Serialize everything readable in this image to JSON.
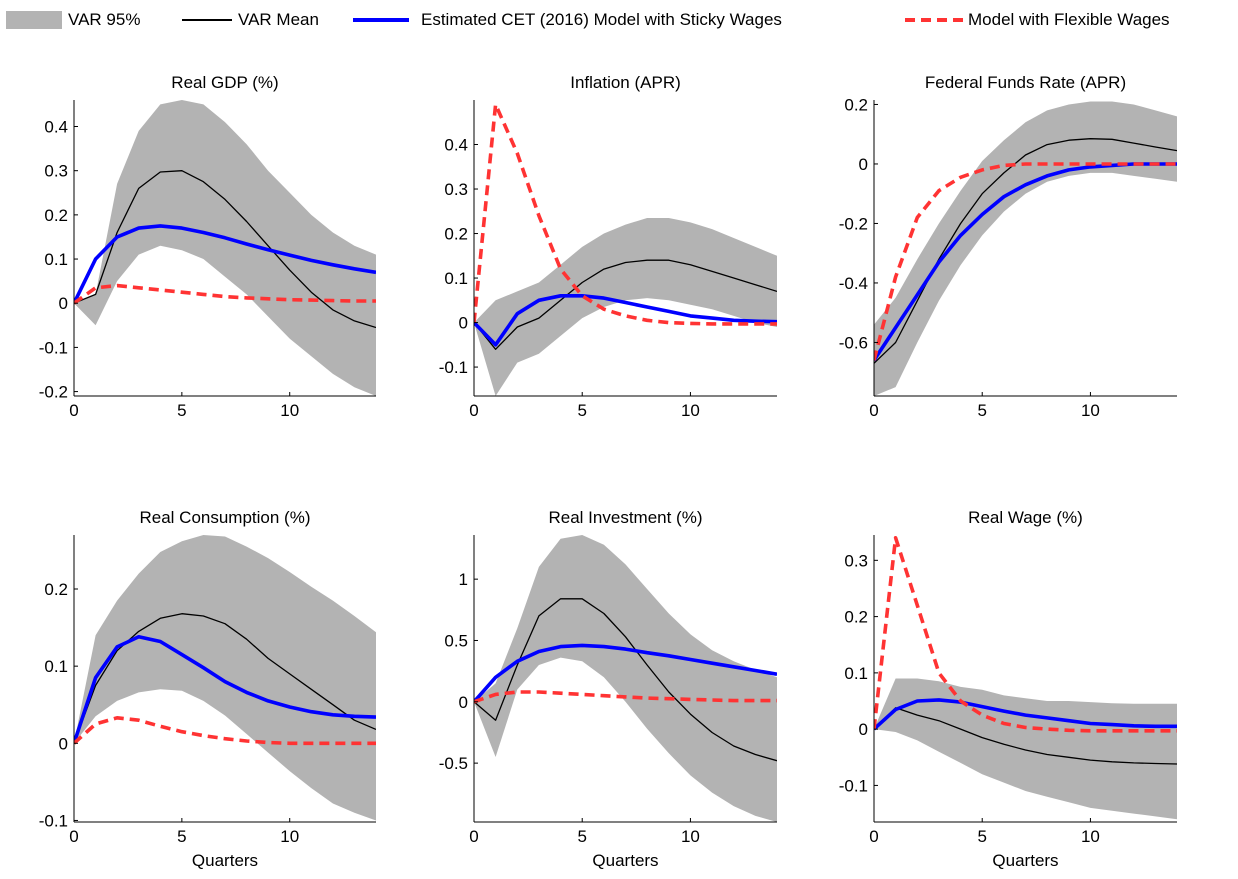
{
  "legend": {
    "var95": "VAR 95%",
    "var_mean": "VAR Mean",
    "sticky": "Estimated CET (2016) Model with Sticky Wages",
    "flexible": "Model with Flexible Wages"
  },
  "colors": {
    "band": "#b3b3b3",
    "var_mean": "#000000",
    "sticky": "#0000ff",
    "flexible": "#ff3333"
  },
  "chart_data": [
    {
      "type": "line",
      "title": "Real GDP (%)",
      "xlabel": "",
      "xlim": [
        0,
        14
      ],
      "ylim": [
        -0.21,
        0.46
      ],
      "xticks": [
        0,
        5,
        10
      ],
      "yticks": [
        -0.2,
        -0.1,
        0,
        0.1,
        0.2,
        0.3,
        0.4
      ],
      "ytick_labels": [
        "-0.2",
        "-0.1",
        "0",
        "0.1",
        "0.2",
        "0.3",
        "0.4"
      ],
      "x": [
        0,
        1,
        2,
        3,
        4,
        5,
        6,
        7,
        8,
        9,
        10,
        11,
        12,
        13,
        14
      ],
      "band_upper": [
        0,
        0.02,
        0.27,
        0.39,
        0.45,
        0.46,
        0.45,
        0.41,
        0.36,
        0.3,
        0.25,
        0.2,
        0.16,
        0.13,
        0.11
      ],
      "band_lower": [
        0,
        -0.05,
        0.05,
        0.11,
        0.13,
        0.12,
        0.1,
        0.06,
        0.02,
        -0.03,
        -0.08,
        -0.12,
        -0.16,
        -0.19,
        -0.21
      ],
      "series": [
        {
          "name": "VAR Mean",
          "values": [
            0,
            0.02,
            0.16,
            0.26,
            0.297,
            0.3,
            0.275,
            0.235,
            0.185,
            0.13,
            0.075,
            0.025,
            -0.015,
            -0.04,
            -0.055
          ]
        },
        {
          "name": "Estimated CET (2016) Model with Sticky Wages",
          "values": [
            0,
            0.1,
            0.15,
            0.17,
            0.175,
            0.17,
            0.16,
            0.148,
            0.134,
            0.121,
            0.109,
            0.097,
            0.087,
            0.078,
            0.07
          ]
        },
        {
          "name": "Model with Flexible Wages",
          "values": [
            0,
            0.035,
            0.04,
            0.035,
            0.03,
            0.025,
            0.02,
            0.015,
            0.012,
            0.01,
            0.008,
            0.007,
            0.006,
            0.005,
            0.005
          ]
        }
      ]
    },
    {
      "type": "line",
      "title": "Inflation (APR)",
      "xlabel": "",
      "xlim": [
        0,
        14
      ],
      "ylim": [
        -0.165,
        0.5
      ],
      "xticks": [
        0,
        5,
        10
      ],
      "yticks": [
        -0.1,
        0,
        0.1,
        0.2,
        0.3,
        0.4
      ],
      "ytick_labels": [
        "-0.1",
        "0",
        "0.1",
        "0.2",
        "0.3",
        "0.4"
      ],
      "x": [
        0,
        1,
        2,
        3,
        4,
        5,
        6,
        7,
        8,
        9,
        10,
        11,
        12,
        13,
        14
      ],
      "band_upper": [
        0,
        0.05,
        0.07,
        0.09,
        0.13,
        0.17,
        0.2,
        0.22,
        0.235,
        0.235,
        0.225,
        0.21,
        0.19,
        0.17,
        0.15
      ],
      "band_lower": [
        0,
        -0.165,
        -0.09,
        -0.07,
        -0.03,
        0.01,
        0.035,
        0.05,
        0.055,
        0.05,
        0.04,
        0.03,
        0.015,
        0,
        -0.01
      ],
      "series": [
        {
          "name": "VAR Mean",
          "values": [
            0,
            -0.06,
            -0.01,
            0.01,
            0.05,
            0.09,
            0.12,
            0.135,
            0.14,
            0.14,
            0.13,
            0.115,
            0.1,
            0.085,
            0.07
          ]
        },
        {
          "name": "Estimated CET (2016) Model with Sticky Wages",
          "values": [
            0,
            -0.05,
            0.02,
            0.05,
            0.06,
            0.06,
            0.055,
            0.045,
            0.035,
            0.025,
            0.015,
            0.01,
            0.005,
            0.003,
            0.002
          ]
        },
        {
          "name": "Model with Flexible Wages",
          "values": [
            0,
            0.49,
            0.38,
            0.24,
            0.12,
            0.06,
            0.03,
            0.015,
            0.005,
            0,
            -0.002,
            -0.003,
            -0.003,
            -0.003,
            -0.003
          ]
        }
      ]
    },
    {
      "type": "line",
      "title": "Federal Funds Rate (APR)",
      "xlabel": "",
      "xlim": [
        0,
        14
      ],
      "ylim": [
        -0.78,
        0.215
      ],
      "xticks": [
        0,
        5,
        10
      ],
      "yticks": [
        -0.6,
        -0.4,
        -0.2,
        0,
        0.2
      ],
      "ytick_labels": [
        "-0.6",
        "-0.4",
        "-0.2",
        "0",
        "0.2"
      ],
      "x": [
        0,
        1,
        2,
        3,
        4,
        5,
        6,
        7,
        8,
        9,
        10,
        11,
        12,
        13,
        14
      ],
      "band_upper": [
        -0.54,
        -0.45,
        -0.32,
        -0.2,
        -0.09,
        0.01,
        0.08,
        0.14,
        0.18,
        0.2,
        0.21,
        0.21,
        0.2,
        0.18,
        0.16
      ],
      "band_lower": [
        -0.78,
        -0.75,
        -0.6,
        -0.46,
        -0.34,
        -0.24,
        -0.16,
        -0.1,
        -0.06,
        -0.04,
        -0.03,
        -0.03,
        -0.04,
        -0.05,
        -0.06
      ],
      "series": [
        {
          "name": "VAR Mean",
          "values": [
            -0.67,
            -0.6,
            -0.46,
            -0.32,
            -0.2,
            -0.1,
            -0.03,
            0.03,
            0.065,
            0.08,
            0.085,
            0.083,
            0.07,
            0.057,
            0.045
          ]
        },
        {
          "name": "Estimated CET (2016) Model with Sticky Wages",
          "values": [
            -0.66,
            -0.55,
            -0.44,
            -0.33,
            -0.24,
            -0.17,
            -0.11,
            -0.07,
            -0.04,
            -0.02,
            -0.01,
            -0.005,
            0,
            0,
            0
          ]
        },
        {
          "name": "Model with Flexible Wages",
          "values": [
            -0.66,
            -0.38,
            -0.18,
            -0.09,
            -0.045,
            -0.02,
            -0.005,
            0,
            0,
            0,
            0,
            0,
            0,
            0,
            0
          ]
        }
      ]
    },
    {
      "type": "line",
      "title": "Real Consumption (%)",
      "xlabel": "Quarters",
      "xlim": [
        0,
        14
      ],
      "ylim": [
        -0.102,
        0.27
      ],
      "xticks": [
        0,
        5,
        10
      ],
      "yticks": [
        -0.1,
        0,
        0.1,
        0.2
      ],
      "ytick_labels": [
        "-0.1",
        "0",
        "0.1",
        "0.2"
      ],
      "x": [
        0,
        1,
        2,
        3,
        4,
        5,
        6,
        7,
        8,
        9,
        10,
        11,
        12,
        13,
        14
      ],
      "band_upper": [
        0,
        0.14,
        0.185,
        0.22,
        0.248,
        0.262,
        0.27,
        0.268,
        0.255,
        0.24,
        0.222,
        0.203,
        0.185,
        0.165,
        0.144
      ],
      "band_lower": [
        0,
        0.035,
        0.055,
        0.066,
        0.07,
        0.068,
        0.055,
        0.036,
        0.012,
        -0.012,
        -0.036,
        -0.058,
        -0.078,
        -0.09,
        -0.1
      ],
      "series": [
        {
          "name": "VAR Mean",
          "values": [
            0,
            0.075,
            0.12,
            0.145,
            0.162,
            0.168,
            0.165,
            0.155,
            0.135,
            0.11,
            0.09,
            0.07,
            0.05,
            0.03,
            0.018
          ]
        },
        {
          "name": "Estimated CET (2016) Model with Sticky Wages",
          "values": [
            0,
            0.085,
            0.125,
            0.138,
            0.132,
            0.115,
            0.098,
            0.08,
            0.066,
            0.055,
            0.047,
            0.041,
            0.037,
            0.035,
            0.034
          ]
        },
        {
          "name": "Model with Flexible Wages",
          "values": [
            0,
            0.025,
            0.033,
            0.03,
            0.022,
            0.015,
            0.01,
            0.006,
            0.003,
            0.001,
            0,
            0,
            0,
            0,
            0
          ]
        }
      ]
    },
    {
      "type": "line",
      "title": "Real Investment (%)",
      "xlabel": "Quarters",
      "xlim": [
        0,
        14
      ],
      "ylim": [
        -0.98,
        1.36
      ],
      "xticks": [
        0,
        5,
        10
      ],
      "yticks": [
        -0.5,
        0,
        0.5,
        1
      ],
      "ytick_labels": [
        "-0.5",
        "0",
        "0.5",
        "1"
      ],
      "x": [
        0,
        1,
        2,
        3,
        4,
        5,
        6,
        7,
        8,
        9,
        10,
        11,
        12,
        13,
        14
      ],
      "band_upper": [
        0,
        0.15,
        0.6,
        1.1,
        1.33,
        1.36,
        1.28,
        1.12,
        0.92,
        0.72,
        0.55,
        0.42,
        0.33,
        0.26,
        0.2
      ],
      "band_lower": [
        0,
        -0.45,
        0.1,
        0.3,
        0.36,
        0.33,
        0.2,
        0.0,
        -0.22,
        -0.42,
        -0.6,
        -0.74,
        -0.85,
        -0.93,
        -0.98
      ],
      "series": [
        {
          "name": "VAR Mean",
          "values": [
            0,
            -0.15,
            0.3,
            0.7,
            0.84,
            0.84,
            0.72,
            0.53,
            0.3,
            0.08,
            -0.1,
            -0.25,
            -0.36,
            -0.43,
            -0.48
          ]
        },
        {
          "name": "Estimated CET (2016) Model with Sticky Wages",
          "values": [
            0,
            0.2,
            0.33,
            0.41,
            0.45,
            0.46,
            0.45,
            0.43,
            0.4,
            0.375,
            0.345,
            0.315,
            0.285,
            0.255,
            0.225
          ]
        },
        {
          "name": "Model with Flexible Wages",
          "values": [
            0,
            0.06,
            0.08,
            0.08,
            0.07,
            0.06,
            0.05,
            0.04,
            0.03,
            0.025,
            0.02,
            0.015,
            0.01,
            0.01,
            0.01
          ]
        }
      ]
    },
    {
      "type": "line",
      "title": "Real Wage (%)",
      "xlabel": "Quarters",
      "xlim": [
        0,
        14
      ],
      "ylim": [
        -0.165,
        0.345
      ],
      "xticks": [
        0,
        5,
        10
      ],
      "yticks": [
        -0.1,
        0,
        0.1,
        0.2,
        0.3
      ],
      "ytick_labels": [
        "-0.1",
        "0",
        "0.1",
        "0.2",
        "0.3"
      ],
      "x": [
        0,
        1,
        2,
        3,
        4,
        5,
        6,
        7,
        8,
        9,
        10,
        11,
        12,
        13,
        14
      ],
      "band_upper": [
        0,
        0.09,
        0.09,
        0.085,
        0.075,
        0.07,
        0.06,
        0.055,
        0.05,
        0.05,
        0.048,
        0.046,
        0.045,
        0.045,
        0.045
      ],
      "band_lower": [
        0,
        -0.005,
        -0.02,
        -0.04,
        -0.06,
        -0.08,
        -0.095,
        -0.11,
        -0.12,
        -0.13,
        -0.14,
        -0.145,
        -0.15,
        -0.155,
        -0.16
      ],
      "series": [
        {
          "name": "VAR Mean",
          "values": [
            0,
            0.038,
            0.025,
            0.015,
            0.0,
            -0.015,
            -0.027,
            -0.037,
            -0.045,
            -0.05,
            -0.055,
            -0.058,
            -0.06,
            -0.061,
            -0.062
          ]
        },
        {
          "name": "Estimated CET (2016) Model with Sticky Wages",
          "values": [
            0,
            0.035,
            0.05,
            0.052,
            0.048,
            0.04,
            0.032,
            0.025,
            0.02,
            0.015,
            0.01,
            0.008,
            0.006,
            0.005,
            0.005
          ]
        },
        {
          "name": "Model with Flexible Wages",
          "values": [
            0,
            0.34,
            0.22,
            0.1,
            0.05,
            0.025,
            0.01,
            0.003,
            0,
            -0.002,
            -0.003,
            -0.003,
            -0.003,
            -0.003,
            -0.003
          ]
        }
      ]
    }
  ]
}
